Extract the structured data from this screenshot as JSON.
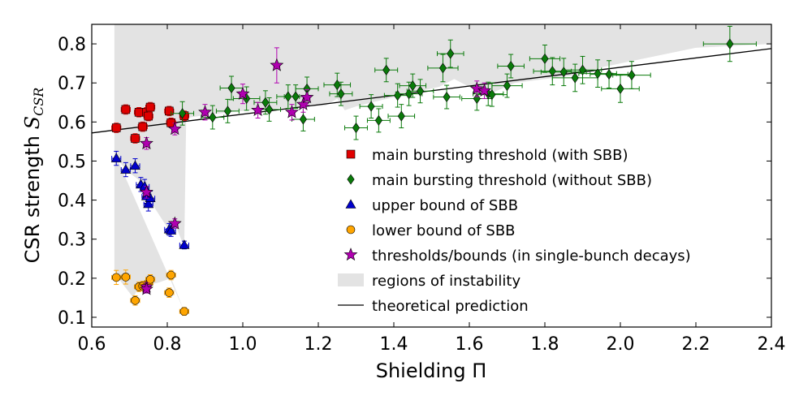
{
  "chart_data": {
    "type": "scatter",
    "xlabel": "Shielding Π",
    "ylabel_main": "CSR strength ",
    "ylabel_symbol": "S",
    "ylabel_sub": "CSR",
    "xlim": [
      0.6,
      2.4
    ],
    "ylim": [
      0.075,
      0.85
    ],
    "xticks": [
      "0.6",
      "0.8",
      "1.0",
      "1.2",
      "1.4",
      "1.6",
      "1.8",
      "2.0",
      "2.2",
      "2.4"
    ],
    "yticks": [
      "0.1",
      "0.2",
      "0.3",
      "0.4",
      "0.5",
      "0.6",
      "0.7",
      "0.8"
    ],
    "grid": false,
    "legend_position": "center-right",
    "colors": {
      "red": "#e00000",
      "green": "#0a7a0a",
      "blue": "#0000cc",
      "orange": "#ffa500",
      "magenta": "#b000b0",
      "shade": "#e3e3e3",
      "line": "#000000"
    },
    "theory": {
      "name": "theoretical prediction",
      "x": [
        0.6,
        2.4
      ],
      "y": [
        0.572,
        0.788
      ]
    },
    "instability_region": {
      "name": "regions of instability",
      "upper": [
        [
          0.66,
          0.85
        ],
        [
          2.4,
          0.85
        ]
      ],
      "lower": [
        [
          2.4,
          0.8
        ],
        [
          2.2,
          0.79
        ],
        [
          2.1,
          0.77
        ],
        [
          1.95,
          0.74
        ],
        [
          1.88,
          0.72
        ],
        [
          1.72,
          0.7
        ],
        [
          1.65,
          0.67
        ],
        [
          1.6,
          0.69
        ],
        [
          1.56,
          0.71
        ],
        [
          1.52,
          0.69
        ],
        [
          1.45,
          0.675
        ],
        [
          1.35,
          0.652
        ],
        [
          1.3,
          0.64
        ],
        [
          1.27,
          0.63
        ],
        [
          1.25,
          0.66
        ],
        [
          1.22,
          0.642
        ],
        [
          1.1,
          0.636
        ],
        [
          1.0,
          0.628
        ],
        [
          0.9,
          0.618
        ],
        [
          0.85,
          0.61
        ],
        [
          0.845,
          0.28
        ],
        [
          0.82,
          0.34
        ],
        [
          0.8,
          0.33
        ],
        [
          0.76,
          0.39
        ],
        [
          0.74,
          0.44
        ],
        [
          0.7,
          0.47
        ],
        [
          0.68,
          0.49
        ],
        [
          0.67,
          0.5
        ],
        [
          0.845,
          0.115
        ],
        [
          0.81,
          0.2
        ],
        [
          0.78,
          0.19
        ],
        [
          0.74,
          0.18
        ],
        [
          0.72,
          0.17
        ],
        [
          0.71,
          0.15
        ],
        [
          0.67,
          0.2
        ],
        [
          0.66,
          0.22
        ]
      ]
    },
    "series": [
      {
        "name": "main bursting threshold (with SBB)",
        "color_key": "red",
        "marker": "square",
        "x": [
          0.665,
          0.69,
          0.715,
          0.725,
          0.735,
          0.745,
          0.75,
          0.755,
          0.805,
          0.81,
          0.845
        ],
        "y": [
          0.585,
          0.632,
          0.558,
          0.625,
          0.588,
          0.625,
          0.615,
          0.638,
          0.628,
          0.598,
          0.616
        ],
        "xerr": [
          0.012,
          0.012,
          0.012,
          0.012,
          0.012,
          0.012,
          0.012,
          0.012,
          0.012,
          0.012,
          0.012
        ],
        "yerr": [
          0.012,
          0.012,
          0.012,
          0.012,
          0.012,
          0.012,
          0.012,
          0.012,
          0.012,
          0.012,
          0.012
        ]
      },
      {
        "name": "main bursting threshold (without SBB)",
        "color_key": "green",
        "marker": "diamond",
        "x": [
          0.84,
          0.92,
          0.96,
          0.97,
          1.01,
          1.06,
          1.07,
          1.12,
          1.14,
          1.16,
          1.17,
          1.25,
          1.26,
          1.3,
          1.34,
          1.36,
          1.38,
          1.41,
          1.42,
          1.44,
          1.45,
          1.47,
          1.53,
          1.54,
          1.55,
          1.62,
          1.65,
          1.66,
          1.7,
          1.71,
          1.8,
          1.82,
          1.85,
          1.88,
          1.9,
          1.94,
          1.97,
          2.0,
          2.03,
          2.29
        ],
        "y": [
          0.622,
          0.612,
          0.628,
          0.687,
          0.66,
          0.65,
          0.632,
          0.665,
          0.665,
          0.607,
          0.685,
          0.695,
          0.672,
          0.585,
          0.64,
          0.604,
          0.733,
          0.668,
          0.615,
          0.672,
          0.693,
          0.679,
          0.738,
          0.664,
          0.775,
          0.66,
          0.672,
          0.67,
          0.693,
          0.743,
          0.762,
          0.73,
          0.728,
          0.713,
          0.733,
          0.724,
          0.722,
          0.685,
          0.72,
          0.8
        ],
        "xerr": [
          0.03,
          0.03,
          0.03,
          0.03,
          0.035,
          0.03,
          0.03,
          0.03,
          0.03,
          0.03,
          0.03,
          0.035,
          0.03,
          0.03,
          0.03,
          0.03,
          0.03,
          0.035,
          0.035,
          0.035,
          0.035,
          0.035,
          0.04,
          0.035,
          0.035,
          0.04,
          0.04,
          0.04,
          0.04,
          0.035,
          0.04,
          0.05,
          0.06,
          0.06,
          0.05,
          0.05,
          0.05,
          0.05,
          0.05,
          0.07
        ],
        "yerr": [
          0.03,
          0.03,
          0.03,
          0.03,
          0.03,
          0.03,
          0.03,
          0.03,
          0.03,
          0.03,
          0.03,
          0.03,
          0.03,
          0.03,
          0.03,
          0.03,
          0.03,
          0.03,
          0.03,
          0.03,
          0.03,
          0.03,
          0.035,
          0.03,
          0.035,
          0.03,
          0.03,
          0.03,
          0.03,
          0.03,
          0.035,
          0.035,
          0.035,
          0.035,
          0.035,
          0.035,
          0.035,
          0.035,
          0.035,
          0.045
        ]
      },
      {
        "name": "upper bound of SBB",
        "color_key": "blue",
        "marker": "triangle",
        "x": [
          0.665,
          0.69,
          0.715,
          0.73,
          0.74,
          0.745,
          0.75,
          0.755,
          0.805,
          0.81,
          0.845
        ],
        "y": [
          0.507,
          0.478,
          0.488,
          0.44,
          0.435,
          0.41,
          0.39,
          0.405,
          0.325,
          0.322,
          0.285
        ],
        "xerr": [
          0.012,
          0.012,
          0.012,
          0.012,
          0.012,
          0.012,
          0.012,
          0.012,
          0.012,
          0.012,
          0.012
        ],
        "yerr": [
          0.018,
          0.018,
          0.018,
          0.018,
          0.018,
          0.018,
          0.018,
          0.018,
          0.015,
          0.015,
          0.01
        ]
      },
      {
        "name": "lower bound of SBB",
        "color_key": "orange",
        "marker": "circle",
        "x": [
          0.665,
          0.69,
          0.715,
          0.725,
          0.735,
          0.745,
          0.75,
          0.755,
          0.805,
          0.81,
          0.845
        ],
        "y": [
          0.202,
          0.203,
          0.143,
          0.178,
          0.18,
          0.18,
          0.188,
          0.197,
          0.163,
          0.208,
          0.115
        ],
        "xerr": [
          0.012,
          0.012,
          0.012,
          0.012,
          0.012,
          0.012,
          0.012,
          0.012,
          0.012,
          0.012,
          0.012
        ],
        "yerr": [
          0.018,
          0.018,
          0.012,
          0.012,
          0.012,
          0.012,
          0.012,
          0.012,
          0.012,
          0.012,
          0.01
        ]
      },
      {
        "name": "thresholds/bounds (in single-bunch decays)",
        "color_key": "magenta",
        "marker": "star",
        "x": [
          0.745,
          0.745,
          0.745,
          0.745,
          0.82,
          0.82,
          0.9,
          1.0,
          1.04,
          1.09,
          1.13,
          1.16,
          1.17,
          1.62,
          1.64
        ],
        "y": [
          0.545,
          0.42,
          0.178,
          0.172,
          0.34,
          0.582,
          0.625,
          0.672,
          0.63,
          0.745,
          0.625,
          0.645,
          0.663,
          0.685,
          0.68
        ],
        "xerr": [
          0.008,
          0.008,
          0.008,
          0.008,
          0.008,
          0.008,
          0.008,
          0.008,
          0.008,
          0.008,
          0.008,
          0.008,
          0.008,
          0.008,
          0.008
        ],
        "yerr": [
          0.015,
          0.015,
          0.01,
          0.01,
          0.012,
          0.015,
          0.02,
          0.025,
          0.02,
          0.045,
          0.02,
          0.02,
          0.02,
          0.02,
          0.02
        ]
      }
    ]
  }
}
